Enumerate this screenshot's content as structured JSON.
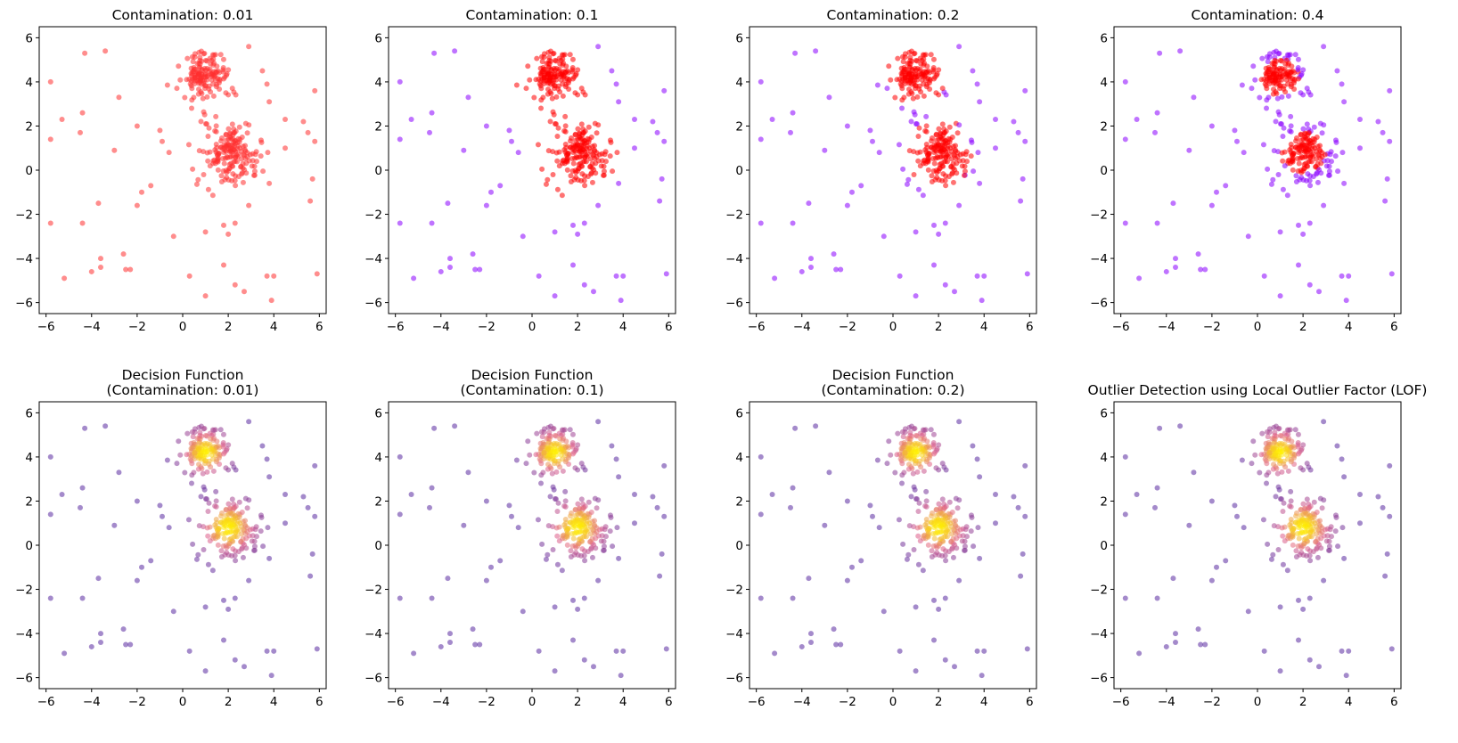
{
  "figure": {
    "panels": [
      {
        "id": "contam-0-01",
        "title_lines": [
          "Contamination: 0.01"
        ],
        "mode": "binary",
        "contamination": 0.01
      },
      {
        "id": "contam-0-1",
        "title_lines": [
          "Contamination: 0.1"
        ],
        "mode": "binary",
        "contamination": 0.1
      },
      {
        "id": "contam-0-2",
        "title_lines": [
          "Contamination: 0.2"
        ],
        "mode": "binary",
        "contamination": 0.2
      },
      {
        "id": "contam-0-4",
        "title_lines": [
          "Contamination: 0.4"
        ],
        "mode": "binary",
        "contamination": 0.4
      },
      {
        "id": "decision-0-01",
        "title_lines": [
          "Decision Function",
          "(Contamination: 0.01)"
        ],
        "mode": "score"
      },
      {
        "id": "decision-0-1",
        "title_lines": [
          "Decision Function",
          "(Contamination: 0.1)"
        ],
        "mode": "score"
      },
      {
        "id": "decision-0-2",
        "title_lines": [
          "Decision Function",
          "(Contamination: 0.2)"
        ],
        "mode": "score"
      },
      {
        "id": "lof-overview",
        "title_lines": [
          "Outlier Detection using Local Outlier Factor (LOF)"
        ],
        "mode": "score"
      }
    ],
    "colors": {
      "inlier": "#ff0000",
      "outlier": "#8b00ff",
      "contam_0_01_all": "#ff3030",
      "score_low": "#5a2aa0",
      "score_mid": "#e0608a",
      "score_high": "#fff000"
    }
  },
  "chart_data": {
    "type": "scatter",
    "xlim": [
      -6.3,
      6.3
    ],
    "ylim": [
      -6.5,
      6.5
    ],
    "xticks": [
      -6,
      -4,
      -2,
      0,
      2,
      4,
      6
    ],
    "yticks": [
      -6,
      -4,
      -2,
      0,
      2,
      4,
      6
    ],
    "xtick_labels": [
      "−6",
      "−4",
      "−2",
      "0",
      "2",
      "4",
      "6"
    ],
    "ytick_labels": [
      "−6",
      "−4",
      "−2",
      "0",
      "2",
      "4",
      "6"
    ],
    "grid": false,
    "clusters": [
      {
        "center": [
          1.0,
          4.2
        ],
        "spread": 0.55,
        "count": 150
      },
      {
        "center": [
          2.0,
          0.8
        ],
        "spread": 0.65,
        "count": 180
      }
    ],
    "outliers": [
      [
        -5.8,
        4.0
      ],
      [
        -5.3,
        2.3
      ],
      [
        -5.8,
        1.4
      ],
      [
        -4.3,
        5.3
      ],
      [
        -3.4,
        5.4
      ],
      [
        -4.4,
        2.6
      ],
      [
        -4.5,
        1.7
      ],
      [
        -2.8,
        3.3
      ],
      [
        -3.0,
        0.9
      ],
      [
        -2.0,
        2.0
      ],
      [
        -1.0,
        1.8
      ],
      [
        -0.9,
        1.3
      ],
      [
        -0.6,
        0.8
      ],
      [
        -1.4,
        -0.7
      ],
      [
        -1.8,
        -1.0
      ],
      [
        -3.7,
        -1.5
      ],
      [
        -2.0,
        -1.6
      ],
      [
        -4.4,
        -2.4
      ],
      [
        -5.8,
        -2.4
      ],
      [
        -5.2,
        -4.9
      ],
      [
        -4.0,
        -4.6
      ],
      [
        -3.6,
        -4.0
      ],
      [
        -3.6,
        -4.4
      ],
      [
        -2.6,
        -3.8
      ],
      [
        -2.5,
        -4.5
      ],
      [
        -2.3,
        -4.5
      ],
      [
        -0.4,
        -3.0
      ],
      [
        0.3,
        -4.8
      ],
      [
        1.0,
        -2.8
      ],
      [
        1.0,
        -5.7
      ],
      [
        1.8,
        -2.5
      ],
      [
        2.0,
        -2.9
      ],
      [
        2.3,
        -2.4
      ],
      [
        1.8,
        -4.3
      ],
      [
        2.3,
        -5.2
      ],
      [
        2.7,
        -5.5
      ],
      [
        2.9,
        -1.6
      ],
      [
        3.8,
        -0.6
      ],
      [
        3.7,
        -4.8
      ],
      [
        4.0,
        -4.8
      ],
      [
        3.9,
        -5.9
      ],
      [
        3.7,
        3.9
      ],
      [
        3.8,
        3.1
      ],
      [
        4.5,
        2.3
      ],
      [
        4.5,
        1.0
      ],
      [
        5.3,
        2.2
      ],
      [
        5.5,
        1.7
      ],
      [
        5.8,
        1.3
      ],
      [
        5.7,
        -0.4
      ],
      [
        5.6,
        -1.4
      ],
      [
        5.9,
        -4.7
      ],
      [
        5.8,
        3.6
      ],
      [
        3.5,
        4.5
      ],
      [
        2.9,
        5.6
      ]
    ]
  }
}
